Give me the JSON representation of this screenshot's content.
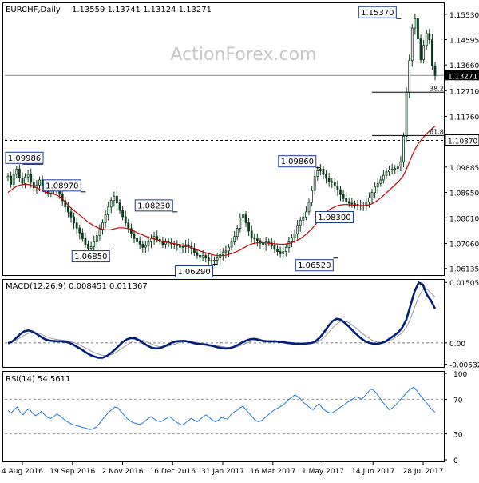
{
  "chart_data": [
    {
      "type": "candlestick",
      "title": "EURCHF,Daily",
      "ohlc": {
        "open": 1.13559,
        "high": 1.13741,
        "low": 1.13124,
        "close": 1.13271
      },
      "ohlc_text": "1.13559 1.13741 1.13124 1.13271",
      "x_tick_labels": [
        "4 Aug 2016",
        "19 Sep 2016",
        "2 Nov 2016",
        "16 Dec 2016",
        "31 Jan 2017",
        "16 Mar 2017",
        "1 May 2017",
        "14 Jun 2017",
        "28 Jul 2017"
      ],
      "y_tick_labels": [
        "1.15530",
        "1.14595",
        "1.13660",
        "1.12710",
        "1.11760",
        "1.10825",
        "1.09885",
        "1.08950",
        "1.08010",
        "1.07060",
        "1.06135"
      ],
      "ylim": [
        1.0595,
        1.1588
      ],
      "current_price": {
        "value": 1.13271,
        "label": "1.13271"
      },
      "support_level": {
        "value": 1.1087,
        "label": "1.10870"
      },
      "fib_levels": [
        {
          "label": "38.2",
          "value": 1.1265
        },
        {
          "label": "61.8",
          "value": 1.1105
        }
      ],
      "annotations": [
        {
          "label": "1.15370",
          "value": 1.1537
        },
        {
          "label": "1.09986",
          "value": 1.0999
        },
        {
          "label": "1.08970",
          "value": 1.0897
        },
        {
          "label": "1.06850",
          "value": 1.0685
        },
        {
          "label": "1.08230",
          "value": 1.0823
        },
        {
          "label": "1.06290",
          "value": 1.0629
        },
        {
          "label": "1.09860",
          "value": 1.0986
        },
        {
          "label": "1.06520",
          "value": 1.0652
        },
        {
          "label": "1.08300",
          "value": 1.083
        }
      ],
      "close_series": [
        1.0955,
        1.0925,
        1.0962,
        1.0981,
        1.0948,
        1.0928,
        1.0952,
        1.0961,
        1.0932,
        1.0912,
        1.0922,
        1.0941,
        1.0921,
        1.0901,
        1.0892,
        1.0902,
        1.0915,
        1.0906,
        1.0888,
        1.0864,
        1.0841,
        1.0823,
        1.0804,
        1.0782,
        1.0763,
        1.0745,
        1.0724,
        1.0703,
        1.0688,
        1.0694,
        1.0712,
        1.0735,
        1.0758,
        1.0783,
        1.0812,
        1.0841,
        1.0865,
        1.0881,
        1.0856,
        1.0828,
        1.0805,
        1.0782,
        1.0761,
        1.0742,
        1.0724,
        1.0712,
        1.0703,
        1.0692,
        1.0698,
        1.0712,
        1.0725,
        1.0732,
        1.0721,
        1.0712,
        1.0703,
        1.0712,
        1.0708,
        1.0704,
        1.0702,
        1.0698,
        1.0692,
        1.0694,
        1.0701,
        1.0695,
        1.0688,
        1.0672,
        1.0662,
        1.0654,
        1.0661,
        1.0652,
        1.0643,
        1.0641,
        1.0644,
        1.0652,
        1.0665,
        1.0674,
        1.0678,
        1.0692,
        1.0711,
        1.0732,
        1.0762,
        1.0801,
        1.0812,
        1.0783,
        1.0752,
        1.0728,
        1.0723,
        1.0716,
        1.0707,
        1.0702,
        1.0711,
        1.0708,
        1.0697,
        1.0684,
        1.0676,
        1.0668,
        1.0676,
        1.0691,
        1.0712,
        1.0728,
        1.0742,
        1.0773,
        1.0792,
        1.0804,
        1.0823,
        1.0858,
        1.0902,
        1.0954,
        1.0975,
        1.0981,
        1.0961,
        1.0947,
        1.0935,
        1.0932,
        1.0918,
        1.0905,
        1.0887,
        1.0872,
        1.0861,
        1.0855,
        1.0853,
        1.0851,
        1.0847,
        1.0845,
        1.0847,
        1.0859,
        1.0874,
        1.0895,
        1.0915,
        1.0928,
        1.0941,
        1.0958,
        1.0971,
        1.0978,
        1.0981,
        1.0983,
        1.0992,
        1.1008,
        1.1102,
        1.1265,
        1.1382,
        1.1502,
        1.1537,
        1.1462,
        1.1385,
        1.1438,
        1.1482,
        1.1459,
        1.1363,
        1.1327
      ],
      "ma_series": [
        1.0895,
        1.0903,
        1.0911,
        1.0918,
        1.0922,
        1.0924,
        1.0925,
        1.0924,
        1.0921,
        1.0916,
        1.0911,
        1.0905,
        1.0899,
        1.0895,
        1.0892,
        1.0891,
        1.0888,
        1.0883,
        1.0876,
        1.0866,
        1.0855,
        1.0843,
        1.0833,
        1.0824,
        1.0816,
        1.0807,
        1.0798,
        1.0789,
        1.0781,
        1.0774,
        1.0768,
        1.0763,
        1.0759,
        1.0757,
        1.0756,
        1.0757,
        1.0759,
        1.0762,
        1.0764,
        1.0764,
        1.0763,
        1.0761,
        1.0757,
        1.0752,
        1.0747,
        1.0742,
        1.0738,
        1.0733,
        1.0729,
        1.0725,
        1.0722,
        1.0719,
        1.0716,
        1.0713,
        1.0711,
        1.0709,
        1.0707,
        1.0705,
        1.0703,
        1.0701,
        1.0699,
        1.0696,
        1.0693,
        1.0689,
        1.0685,
        1.0681,
        1.0677,
        1.0673,
        1.067,
        1.0667,
        1.0664,
        1.0662,
        1.0661,
        1.0661,
        1.0662,
        1.0664,
        1.0667,
        1.0671,
        1.0675,
        1.068,
        1.0686,
        1.0692,
        1.0698,
        1.0703,
        1.0706,
        1.0708,
        1.0709,
        1.0709,
        1.0708,
        1.0707,
        1.0706,
        1.0705,
        1.0704,
        1.0703,
        1.0703,
        1.0704,
        1.0706,
        1.0709,
        1.0713,
        1.0718,
        1.0724,
        1.0732,
        1.0741,
        1.0751,
        1.0762,
        1.0775,
        1.0789,
        1.0802,
        1.0814,
        1.0824,
        1.0832,
        1.0838,
        1.0843,
        1.0847,
        1.0849,
        1.085,
        1.085,
        1.0849,
        1.0848,
        1.0847,
        1.0846,
        1.0846,
        1.0846,
        1.0848,
        1.0851,
        1.0856,
        1.0863,
        1.0871,
        1.088,
        1.089,
        1.09,
        1.091,
        1.092,
        1.093,
        1.0941,
        1.0955,
        1.0976,
        1.1002,
        1.1028,
        1.1052,
        1.1071,
        1.1086,
        1.1098,
        1.111,
        1.1121,
        1.1131,
        1.114
      ]
    },
    {
      "type": "line",
      "title": "MACD(12,26,9) 0.008451 0.011367",
      "y_tick_labels": [
        "0.015052",
        "0.00",
        "-0.005321"
      ],
      "ylim": [
        -0.0056,
        0.0153
      ],
      "series": [
        {
          "values": [
            -0.0001,
            0.0003,
            0.0012,
            0.0022,
            0.0029,
            0.0031,
            0.0028,
            0.0022,
            0.0015,
            0.0009,
            0.0006,
            0.0005,
            0.0004,
            0.0004,
            0.0003,
            0.0,
            -0.0005,
            -0.0011,
            -0.0017,
            -0.0024,
            -0.003,
            -0.0034,
            -0.0037,
            -0.0037,
            -0.0033,
            -0.0026,
            -0.0017,
            -0.0007,
            0.0003,
            0.0009,
            0.0012,
            0.0011,
            0.0006,
            -0.0001,
            -0.0007,
            -0.0012,
            -0.0014,
            -0.0013,
            -0.0009,
            -0.0004,
            0.0001,
            0.0004,
            0.0005,
            0.0005,
            0.0003,
            0.0,
            -0.0002,
            -0.0003,
            -0.0004,
            -0.0006,
            -0.0008,
            -0.0011,
            -0.0013,
            -0.0014,
            -0.0013,
            -0.001,
            -0.0005,
            0.0001,
            0.0006,
            0.0009,
            0.001,
            0.0008,
            0.0005,
            0.0004,
            0.0004,
            0.0004,
            0.0003,
            0.0002,
            0.0,
            -0.0001,
            -0.0002,
            -0.0002,
            -0.0002,
            -0.0001,
            0.0,
            0.0005,
            0.0014,
            0.0027,
            0.0042,
            0.0054,
            0.006,
            0.0058,
            0.005,
            0.0041,
            0.003,
            0.002,
            0.0011,
            0.0004,
            0.0,
            -0.0002,
            -0.0002,
            0.0,
            0.0004,
            0.0011,
            0.0018,
            0.0026,
            0.0038,
            0.0058,
            0.0093,
            0.0128,
            0.015,
            0.0145,
            0.012,
            0.0105,
            0.0085
          ]
        },
        {
          "values": [
            0.0002,
            0.0003,
            0.0007,
            0.0013,
            0.0019,
            0.0024,
            0.0026,
            0.0025,
            0.0022,
            0.0017,
            0.0013,
            0.001,
            0.0008,
            0.0007,
            0.0006,
            0.0004,
            0.0001,
            -0.0003,
            -0.0008,
            -0.0013,
            -0.0019,
            -0.0024,
            -0.0028,
            -0.0031,
            -0.0032,
            -0.003,
            -0.0026,
            -0.0019,
            -0.0012,
            -0.0005,
            0.0002,
            0.0006,
            0.0008,
            0.0006,
            0.0002,
            -0.0003,
            -0.0007,
            -0.001,
            -0.001,
            -0.0008,
            -0.0005,
            -0.0002,
            0.0001,
            0.0003,
            0.0004,
            0.0003,
            0.0001,
            -0.0001,
            -0.0002,
            -0.0004,
            -0.0005,
            -0.0007,
            -0.0009,
            -0.0011,
            -0.0012,
            -0.0011,
            -0.0009,
            -0.0005,
            -0.0001,
            0.0003,
            0.0006,
            0.0007,
            0.0007,
            0.0006,
            0.0005,
            0.0005,
            0.0004,
            0.0003,
            0.0002,
            0.0001,
            0.0,
            -0.0001,
            -0.0001,
            -0.0001,
            -0.0001,
            0.0001,
            0.0006,
            0.0014,
            0.0025,
            0.0037,
            0.0047,
            0.0053,
            0.0054,
            0.005,
            0.0043,
            0.0035,
            0.0026,
            0.0018,
            0.0011,
            0.0005,
            0.0002,
            0.0001,
            0.0002,
            0.0006,
            0.0011,
            0.0018,
            0.0026,
            0.0038,
            0.006,
            0.0088,
            0.0115,
            0.0132,
            0.0134,
            0.0124,
            0.0114
          ]
        }
      ]
    },
    {
      "type": "line",
      "title": "RSI(14) 54.5611",
      "y_tick_labels": [
        "100",
        "70",
        "30",
        "0"
      ],
      "ylim": [
        0,
        100
      ],
      "reference_lines": [
        70,
        30
      ],
      "series": [
        {
          "values": [
            57,
            54,
            58,
            61,
            55,
            52,
            57,
            59,
            54,
            51,
            53,
            56,
            52,
            49,
            48,
            50,
            53,
            51,
            48,
            45,
            43,
            41,
            40,
            39,
            38,
            37,
            36,
            35,
            36,
            38,
            42,
            47,
            51,
            55,
            58,
            61,
            60,
            56,
            52,
            48,
            45,
            43,
            42,
            41,
            42,
            45,
            48,
            50,
            47,
            45,
            44,
            46,
            48,
            50,
            47,
            44,
            42,
            40,
            42,
            45,
            48,
            46,
            44,
            47,
            50,
            52,
            49,
            46,
            44,
            46,
            49,
            48,
            47,
            52,
            55,
            57,
            60,
            62,
            58,
            54,
            50,
            46,
            44,
            45,
            48,
            51,
            54,
            57,
            59,
            61,
            63,
            66,
            70,
            72,
            75,
            73,
            70,
            66,
            63,
            60,
            58,
            62,
            65,
            60,
            57,
            55,
            54,
            56,
            58,
            61,
            63,
            66,
            68,
            70,
            73,
            72,
            70,
            74,
            78,
            82,
            80,
            76,
            71,
            66,
            62,
            58,
            60,
            63,
            67,
            71,
            75,
            79,
            82,
            84,
            80,
            75,
            71,
            67,
            62,
            58,
            55
          ]
        }
      ]
    }
  ],
  "watermark": "ActionForex.com"
}
